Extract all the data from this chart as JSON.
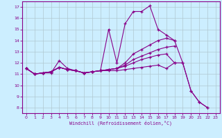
{
  "background_color": "#cceeff",
  "grid_color": "#b0c8d0",
  "line_color": "#880088",
  "xlabel": "Windchill (Refroidissement éolien,°C)",
  "xlim": [
    -0.5,
    23.5
  ],
  "ylim": [
    7.5,
    17.5
  ],
  "xticks": [
    0,
    1,
    2,
    3,
    4,
    5,
    6,
    7,
    8,
    9,
    10,
    11,
    12,
    13,
    14,
    15,
    16,
    17,
    18,
    19,
    20,
    21,
    22,
    23
  ],
  "yticks": [
    8,
    9,
    10,
    11,
    12,
    13,
    14,
    15,
    16,
    17
  ],
  "series": [
    {
      "x": [
        0,
        1,
        2,
        3,
        4,
        5,
        6,
        7,
        8,
        9,
        10,
        11,
        12,
        13,
        14,
        15,
        16,
        17,
        18,
        19,
        20,
        21,
        22
      ],
      "y": [
        11.5,
        11.0,
        11.1,
        11.1,
        12.2,
        11.5,
        11.3,
        11.1,
        11.2,
        11.3,
        15.0,
        12.0,
        15.5,
        16.6,
        16.6,
        17.1,
        15.0,
        14.5,
        14.0,
        12.0,
        9.5,
        8.5,
        8.0
      ]
    },
    {
      "x": [
        0,
        1,
        2,
        3,
        4,
        5,
        6,
        7,
        8,
        9,
        10,
        11,
        12,
        13,
        14,
        15,
        16,
        17,
        18
      ],
      "y": [
        11.5,
        11.0,
        11.1,
        11.2,
        11.6,
        11.4,
        11.3,
        11.1,
        11.2,
        11.3,
        11.4,
        11.5,
        12.0,
        12.8,
        13.2,
        13.6,
        14.0,
        14.2,
        14.0
      ]
    },
    {
      "x": [
        0,
        1,
        2,
        3,
        4,
        5,
        6,
        7,
        8,
        9,
        10,
        11,
        12,
        13,
        14,
        15,
        16,
        17,
        18
      ],
      "y": [
        11.5,
        11.0,
        11.1,
        11.2,
        11.6,
        11.4,
        11.3,
        11.1,
        11.2,
        11.3,
        11.4,
        11.5,
        11.8,
        12.3,
        12.6,
        12.9,
        13.2,
        13.4,
        13.5
      ]
    },
    {
      "x": [
        0,
        1,
        2,
        3,
        4,
        5,
        6,
        7,
        8,
        9,
        10,
        11,
        12,
        13,
        14,
        15,
        16,
        17,
        18
      ],
      "y": [
        11.5,
        11.0,
        11.1,
        11.2,
        11.6,
        11.4,
        11.3,
        11.1,
        11.2,
        11.3,
        11.4,
        11.5,
        11.7,
        12.0,
        12.3,
        12.5,
        12.7,
        12.8,
        12.0
      ]
    },
    {
      "x": [
        0,
        1,
        2,
        3,
        4,
        5,
        6,
        7,
        8,
        9,
        10,
        11,
        12,
        13,
        14,
        15,
        16,
        17,
        18,
        19,
        20,
        21,
        22
      ],
      "y": [
        11.5,
        11.0,
        11.1,
        11.2,
        11.6,
        11.4,
        11.3,
        11.1,
        11.2,
        11.3,
        11.3,
        11.3,
        11.4,
        11.5,
        11.6,
        11.7,
        11.8,
        11.5,
        12.0,
        12.0,
        9.5,
        8.5,
        8.0
      ]
    }
  ]
}
